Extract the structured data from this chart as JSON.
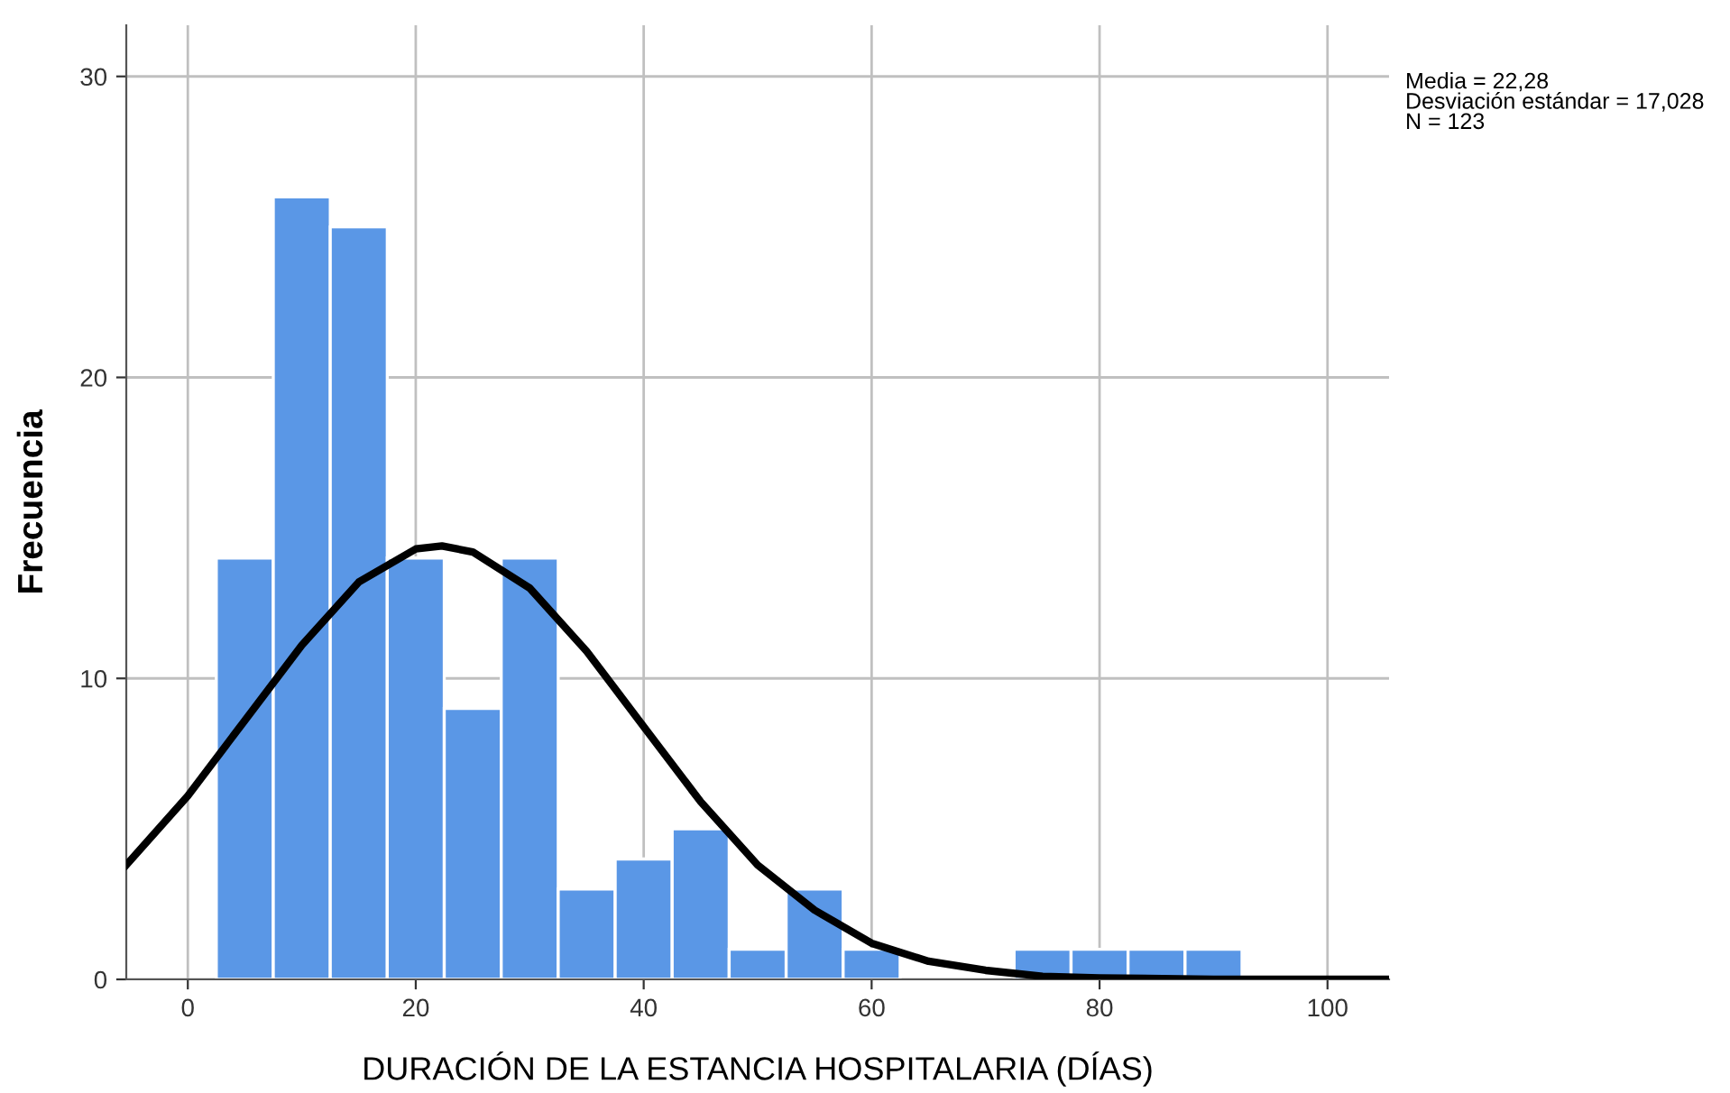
{
  "chart_data": {
    "type": "histogram",
    "xlabel": "DURACIÓN DE LA ESTANCIA HOSPITALARIA (DÍAS)",
    "ylabel": "Frecuencia",
    "bins": [
      2.5,
      7.5,
      12.5,
      17.5,
      22.5,
      27.5,
      32.5,
      37.5,
      42.5,
      47.5,
      52.5,
      57.5,
      62.5,
      67.5,
      72.5,
      77.5,
      82.5,
      87.5,
      92.5
    ],
    "values": [
      14,
      26,
      25,
      14,
      9,
      14,
      3,
      4,
      5,
      1,
      3,
      1,
      0,
      0,
      1,
      1,
      1,
      1
    ],
    "color": "#5a97e6",
    "series": [
      {
        "type": "line",
        "color": "#000000",
        "x": [
          -5.4,
          0,
          5,
          10,
          15,
          20,
          22.3,
          25,
          30,
          35,
          40,
          45,
          50,
          55,
          60,
          65,
          70,
          75,
          80,
          90,
          105.4
        ],
        "values": [
          3.8,
          6.1,
          8.6,
          11.1,
          13.2,
          14.3,
          14.4,
          14.2,
          13.0,
          10.9,
          8.4,
          5.9,
          3.8,
          2.3,
          1.2,
          0.6,
          0.3,
          0.1,
          0.05,
          0,
          0
        ]
      }
    ],
    "xlim": [
      -5.4,
      105.4
    ],
    "xticks": [
      0,
      20,
      40,
      60,
      80,
      100
    ],
    "ylim": [
      0,
      31.7
    ],
    "yticks": [
      0,
      10,
      20,
      30
    ],
    "grid": true,
    "annotations": [
      "Media = 22,28\nDesviación estándar = 17,028\nN = 123"
    ]
  }
}
